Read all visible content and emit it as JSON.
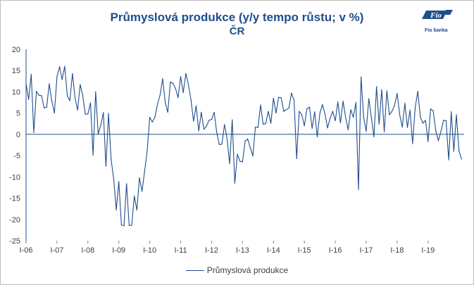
{
  "chart_data": {
    "type": "line",
    "title": "Průmyslová produkce (y/y tempo růstu; v %)",
    "subtitle": "ČR",
    "xlabel": "",
    "ylabel": "",
    "ylim": [
      -25,
      20
    ],
    "yticks": [
      20,
      15,
      10,
      5,
      0,
      -5,
      -10,
      -15,
      -20,
      -25
    ],
    "grid": false,
    "legend": "bottom",
    "x_tick_labels": [
      "I-06",
      "I-07",
      "I-08",
      "I-09",
      "I-10",
      "I-11",
      "I-12",
      "I-13",
      "I-14",
      "I-15",
      "I-16",
      "I-17",
      "I-18",
      "I-19"
    ],
    "x_start": "2006-01",
    "series": [
      {
        "name": "Průmyslová produkce",
        "color": "#1f4e8c",
        "values": [
          11.9,
          8.2,
          14.1,
          0.4,
          10.1,
          9.2,
          9.1,
          6.2,
          6.4,
          11.9,
          7.8,
          5.0,
          13.6,
          15.9,
          12.9,
          16.0,
          9.1,
          7.9,
          14.3,
          8.6,
          5.7,
          11.7,
          9.1,
          4.7,
          4.8,
          7.4,
          -4.9,
          10.0,
          0.1,
          2.1,
          5.1,
          -7.5,
          4.9,
          -5.9,
          -10.4,
          -17.8,
          -11.1,
          -21.3,
          -21.5,
          -11.6,
          -21.4,
          -21.4,
          -14.5,
          -17.8,
          -10.2,
          -13.4,
          -8.7,
          -3.9,
          4.0,
          2.9,
          4.0,
          7.1,
          9.2,
          13.1,
          7.5,
          5.2,
          12.3,
          12.0,
          10.8,
          8.6,
          13.6,
          9.8,
          14.3,
          11.7,
          8.1,
          3.1,
          6.7,
          0.8,
          5.2,
          1.2,
          1.9,
          3.3,
          3.5,
          5.2,
          0.4,
          -2.4,
          -2.3,
          2.3,
          -1.0,
          -6.9,
          3.4,
          -11.5,
          -4.7,
          -6.3,
          -6.5,
          -1.6,
          -1.1,
          -3.1,
          -5.1,
          1.7,
          1.6,
          6.9,
          2.4,
          2.5,
          5.4,
          2.6,
          8.5,
          5.0,
          8.7,
          8.6,
          5.4,
          5.8,
          6.2,
          9.7,
          8.0,
          -5.7,
          5.4,
          4.6,
          2.0,
          6.0,
          6.4,
          1.4,
          5.3,
          -0.6,
          4.9,
          7.0,
          4.8,
          1.5,
          3.8,
          5.4,
          3.2,
          7.6,
          2.7,
          7.8,
          4.0,
          1.1,
          5.8,
          4.0,
          7.5,
          -13.0,
          13.5,
          4.0,
          0.7,
          8.4,
          4.0,
          -0.6,
          11.2,
          2.4,
          10.5,
          0.6,
          10.2,
          4.6,
          5.4,
          6.8,
          9.6,
          4.6,
          1.7,
          7.3,
          1.6,
          5.7,
          -2.2,
          6.2,
          10.1,
          4.1,
          2.6,
          3.3,
          -1.7,
          6.0,
          5.5,
          0.8,
          -1.5,
          0.7,
          3.3,
          3.2,
          -6.0,
          5.3,
          -4.0,
          4.6,
          -3.9,
          -5.8
        ]
      }
    ]
  },
  "legend": {
    "label": "Průmyslová produkce"
  },
  "logo": {
    "text": "Fio",
    "caption": "Fio banka"
  }
}
